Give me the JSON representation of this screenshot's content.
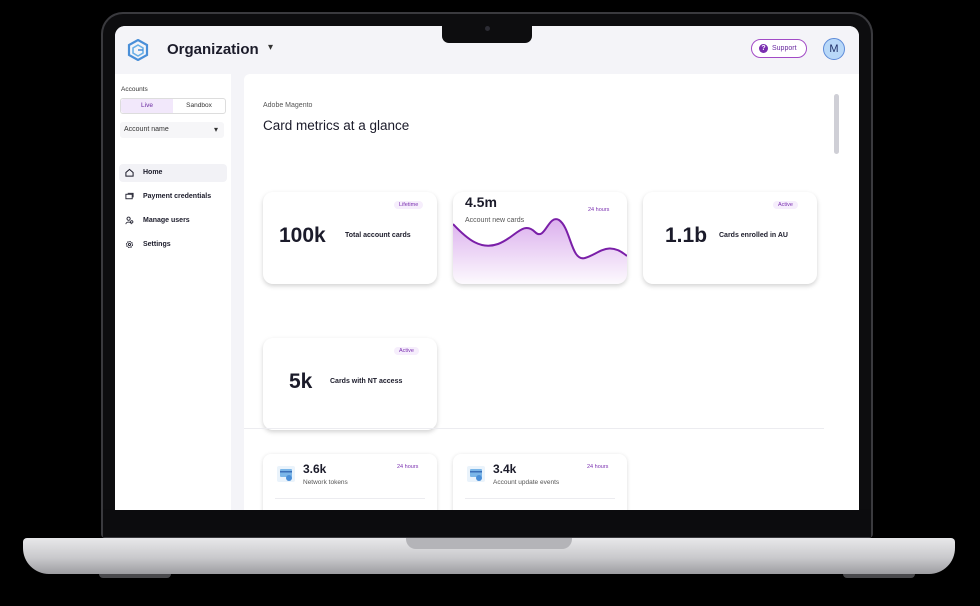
{
  "header": {
    "org_title": "Organization",
    "support_label": "Support",
    "avatar_initial": "M"
  },
  "sidebar": {
    "accounts_label": "Accounts",
    "modes": [
      "Live",
      "Sandbox"
    ],
    "account_select": "Account name",
    "items": [
      {
        "label": "Home",
        "icon": "home-icon"
      },
      {
        "label": "Payment credentials",
        "icon": "cards-icon"
      },
      {
        "label": "Manage users",
        "icon": "users-icon"
      },
      {
        "label": "Settings",
        "icon": "gear-icon"
      }
    ]
  },
  "main": {
    "brand": "Adobe Magento",
    "title": "Card metrics at a glance",
    "cards": [
      {
        "value": "100k",
        "caption": "Total account cards",
        "badge": "Lifetime"
      },
      {
        "value": "4.5m",
        "caption": "Account new cards",
        "badge": "24 hours"
      },
      {
        "value": "1.1b",
        "caption": "Cards enrolled in AU",
        "badge": "Active"
      },
      {
        "value": "5k",
        "caption": "Cards with NT access",
        "badge": "Active"
      }
    ],
    "small_cards": [
      {
        "value": "3.6k",
        "caption": "Network tokens",
        "badge": "24 hours"
      },
      {
        "value": "3.4k",
        "caption": "Account update events",
        "badge": "24 hours"
      }
    ]
  },
  "colors": {
    "accent": "#7a2fb0",
    "badge_bg": "#f6eefc"
  }
}
